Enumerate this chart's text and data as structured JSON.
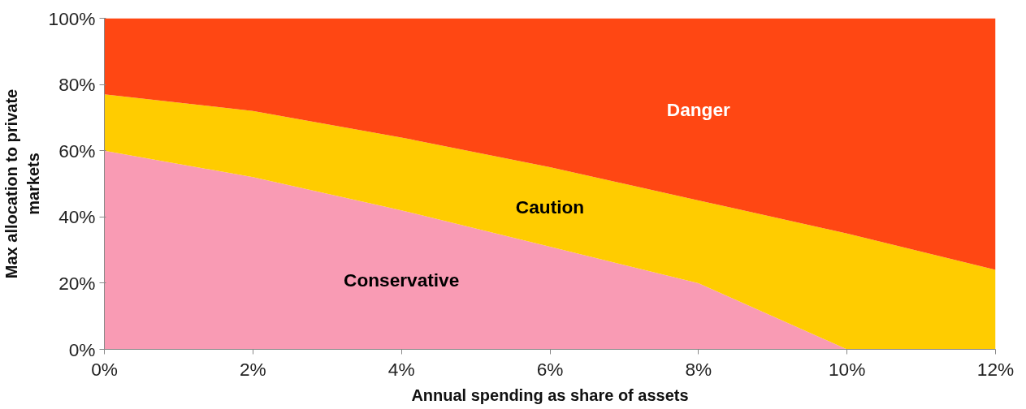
{
  "chart_data": {
    "type": "area",
    "stacked": true,
    "xlabel": "Annual spending as share of assets",
    "ylabel": "Max allocation to private markets",
    "x": [
      0,
      2,
      4,
      6,
      8,
      10,
      12
    ],
    "xlim": [
      0,
      12
    ],
    "ylim": [
      0,
      100
    ],
    "xticks": [
      {
        "value": 0,
        "label": "0%"
      },
      {
        "value": 2,
        "label": "2%"
      },
      {
        "value": 4,
        "label": "4%"
      },
      {
        "value": 6,
        "label": "6%"
      },
      {
        "value": 8,
        "label": "8%"
      },
      {
        "value": 10,
        "label": "10%"
      },
      {
        "value": 12,
        "label": "12%"
      }
    ],
    "yticks": [
      {
        "value": 0,
        "label": "0%"
      },
      {
        "value": 20,
        "label": "20%"
      },
      {
        "value": 40,
        "label": "40%"
      },
      {
        "value": 60,
        "label": "60%"
      },
      {
        "value": 80,
        "label": "80%"
      },
      {
        "value": 100,
        "label": "100%"
      }
    ],
    "series": [
      {
        "name": "Conservative",
        "color": "#f99bb4",
        "values": [
          60,
          52,
          42,
          31,
          20,
          0,
          0
        ]
      },
      {
        "name": "Caution",
        "color": "#ffcc00",
        "values": [
          17,
          20,
          22,
          24,
          25,
          35,
          24
        ]
      },
      {
        "name": "Danger",
        "color": "#ff4713",
        "values": [
          23,
          28,
          36,
          45,
          55,
          65,
          76
        ]
      }
    ],
    "grid": false
  }
}
